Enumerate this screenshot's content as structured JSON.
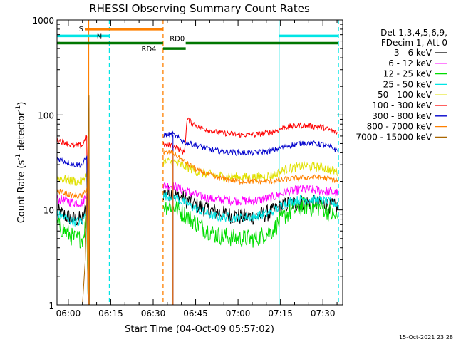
{
  "chart_data": {
    "type": "line",
    "title": "RHESSI Observing Summary Count Rates",
    "xlabel": "Start Time (04-Oct-09 05:57:02)",
    "ylabel_main": "Count Rate (s",
    "ylabel_exp": "-1",
    "ylabel_tail": " detector",
    "ylabel_end": ")",
    "yscale": "log",
    "xlim": [
      -4,
      97
    ],
    "ylim": [
      1,
      1000
    ],
    "x_units": "minutes after 06:00 UT",
    "xticks": [
      {
        "value": 0,
        "label": "06:00"
      },
      {
        "value": 15,
        "label": "06:15"
      },
      {
        "value": 30,
        "label": "06:30"
      },
      {
        "value": 45,
        "label": "06:45"
      },
      {
        "value": 60,
        "label": "07:00"
      },
      {
        "value": 75,
        "label": "07:15"
      },
      {
        "value": 90,
        "label": "07:30"
      }
    ],
    "yticks": [
      {
        "value": 1,
        "label": "1"
      },
      {
        "value": 10,
        "label": "10"
      },
      {
        "value": 100,
        "label": "100"
      },
      {
        "value": 1000,
        "label": "1000"
      }
    ],
    "legend": {
      "position": "right",
      "header": [
        "Det 1,3,4,5,6,9,",
        "FDecim 1, Att 0"
      ]
    },
    "series": [
      {
        "name": "3 - 6 keV",
        "color": "#000000",
        "noise": 0.09,
        "x": [
          -4,
          2,
          5,
          6.5,
          7,
          30,
          37,
          41,
          46,
          52,
          60,
          66,
          72,
          77,
          83,
          90,
          95.5
        ],
        "y": [
          9.5,
          8,
          8,
          11,
          0,
          0,
          15,
          13,
          11,
          9.5,
          8.5,
          8.5,
          9.5,
          11.5,
          12,
          11.5,
          10.5
        ]
      },
      {
        "name": "6 - 12 keV",
        "color": "#ff00ff",
        "noise": 0.05,
        "x": [
          -4,
          2,
          5,
          6.5,
          7,
          30,
          37,
          41,
          46,
          52,
          60,
          66,
          72,
          77,
          83,
          90,
          95.5
        ],
        "y": [
          13,
          12,
          12,
          15,
          0,
          0,
          18,
          16,
          14,
          13,
          12.5,
          12.5,
          13.5,
          15.5,
          16.5,
          16,
          15
        ]
      },
      {
        "name": "12 - 25 keV",
        "color": "#00dd00",
        "noise": 0.1,
        "x": [
          -4,
          2,
          5,
          6.5,
          7,
          30,
          37,
          41,
          46,
          52,
          60,
          66,
          72,
          77,
          83,
          90,
          95.5
        ],
        "y": [
          7,
          5,
          5,
          8,
          0,
          0,
          11,
          9,
          7,
          5.5,
          5,
          5,
          6,
          9,
          11,
          10.5,
          8
        ]
      },
      {
        "name": "25 - 50 keV",
        "color": "#00e5e5",
        "noise": 0.05,
        "x": [
          -4,
          2,
          5,
          6.5,
          7,
          30,
          37,
          41,
          46,
          52,
          60,
          66,
          72,
          77,
          83,
          90,
          95.5
        ],
        "y": [
          9,
          7.5,
          7.5,
          10,
          0,
          0,
          14,
          12,
          10,
          8.5,
          8.3,
          8.5,
          9.5,
          12,
          13,
          12.5,
          11.5
        ]
      },
      {
        "name": "50 - 100 keV",
        "color": "#e0e000",
        "noise": 0.05,
        "x": [
          -4,
          2,
          5,
          6.5,
          7,
          30,
          37,
          41,
          46,
          52,
          60,
          66,
          72,
          77,
          83,
          90,
          95.5
        ],
        "y": [
          22,
          20,
          20,
          24,
          0,
          0,
          32,
          29,
          25,
          23,
          22,
          22,
          23,
          27,
          29,
          28,
          25
        ]
      },
      {
        "name": "100 - 300 keV",
        "color": "#ff0000",
        "noise": 0.03,
        "x": [
          -4,
          2,
          5,
          6.5,
          7,
          30,
          37,
          41,
          42,
          46,
          52,
          60,
          66,
          72,
          77,
          83,
          90,
          95.5
        ],
        "y": [
          55,
          47,
          48,
          60,
          0,
          0,
          48,
          40,
          90,
          75,
          66,
          62,
          62,
          66,
          75,
          78,
          74,
          64
        ]
      },
      {
        "name": "300 - 800 keV",
        "color": "#0000cc",
        "noise": 0.03,
        "x": [
          -4,
          2,
          5,
          6.5,
          7,
          30,
          37,
          41,
          46,
          52,
          60,
          66,
          72,
          77,
          83,
          90,
          95.5
        ],
        "y": [
          35,
          30,
          30,
          36,
          0,
          0,
          62,
          52,
          47,
          42,
          40,
          40,
          42,
          47,
          51,
          49,
          42
        ]
      },
      {
        "name": "800 - 7000 keV",
        "color": "#ff8000",
        "noise": 0.03,
        "x": [
          -4,
          2,
          5,
          6.5,
          7,
          30,
          37,
          41,
          46,
          52,
          60,
          66,
          72,
          77,
          83,
          90,
          95.5
        ],
        "y": [
          16,
          14,
          14,
          17,
          0,
          0,
          40,
          32,
          26,
          22,
          20,
          20,
          20,
          21,
          22,
          22,
          20
        ]
      },
      {
        "name": "7000 - 15000 keV",
        "color": "#aa6600",
        "noise": 0,
        "x": [
          5,
          6,
          6.7,
          7.3
        ],
        "y": [
          1,
          3,
          20,
          160
        ]
      }
    ],
    "annotations": {
      "s_label": "S",
      "n_label": "N",
      "rd0_label": "RD0",
      "rd4_label": "RD4",
      "segments": [
        {
          "name": "saa-bar",
          "color": "#ff8000",
          "x0": 6,
          "x1": 33.5,
          "y": 800
        },
        {
          "name": "night-bar-1",
          "color": "#00e5e5",
          "x0": -4,
          "x1": 14.5,
          "y": 680
        },
        {
          "name": "night-bar-2",
          "color": "#00e5e5",
          "x0": 74.5,
          "x1": 95.5,
          "y": 680
        },
        {
          "name": "rd-bar-1",
          "color": "#007700",
          "x0": -4,
          "x1": 33.5,
          "y": 570
        },
        {
          "name": "rd4-bar",
          "color": "#007700",
          "x0": 33.5,
          "x1": 41.5,
          "y": 500
        },
        {
          "name": "rd-bar-2",
          "color": "#007700",
          "x0": 41.5,
          "x1": 95.5,
          "y": 570
        }
      ],
      "vlines": [
        {
          "name": "saa-start-line",
          "color": "#ff8000",
          "x": 7.2,
          "dash": false
        },
        {
          "name": "night-end-line-1",
          "color": "#00e5e5",
          "x": 14.5,
          "dash": true
        },
        {
          "name": "saa-end-line",
          "color": "#ff8000",
          "x": 33.5,
          "dash": true
        },
        {
          "name": "night-start-line",
          "color": "#00e5e5",
          "x": 74.5,
          "dash": false
        },
        {
          "name": "night-end-line-2",
          "color": "#00e5e5",
          "x": 95.5,
          "dash": true
        }
      ]
    },
    "timestamp": "15-Oct-2021 23:28"
  }
}
